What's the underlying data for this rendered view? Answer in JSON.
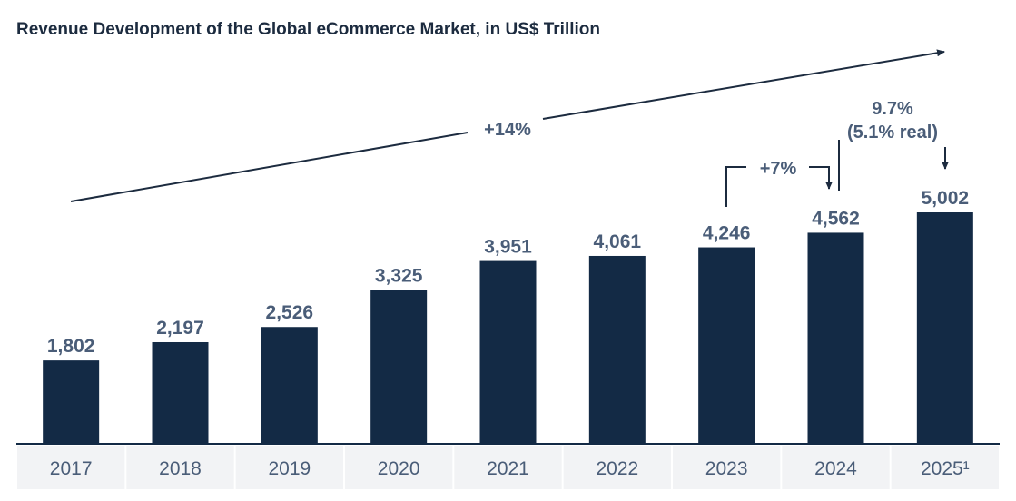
{
  "chart_data": {
    "type": "bar",
    "title": "Revenue Development of the Global eCommerce Market, in US$ Trillion",
    "categories": [
      "2017",
      "2018",
      "2019",
      "2020",
      "2021",
      "2022",
      "2023",
      "2024",
      "2025¹"
    ],
    "values": [
      1802,
      2197,
      2526,
      3325,
      3951,
      4061,
      4246,
      4562,
      5002
    ],
    "value_labels": [
      "1,802",
      "2,197",
      "2,526",
      "3,325",
      "3,951",
      "4,061",
      "4,246",
      "4,562",
      "5,002"
    ],
    "ylim": [
      0,
      5600
    ],
    "grid": false,
    "annotations": {
      "cagr": "+14%",
      "growth_2023_2024": "+7%",
      "growth_2025_line1": "9.7%",
      "growth_2025_line2": "(5.1% real)"
    },
    "colors": {
      "bar": "#132a45",
      "label": "#4a5d78",
      "axis_band": "#f2f3f5",
      "line": "#1c2b3f"
    }
  }
}
